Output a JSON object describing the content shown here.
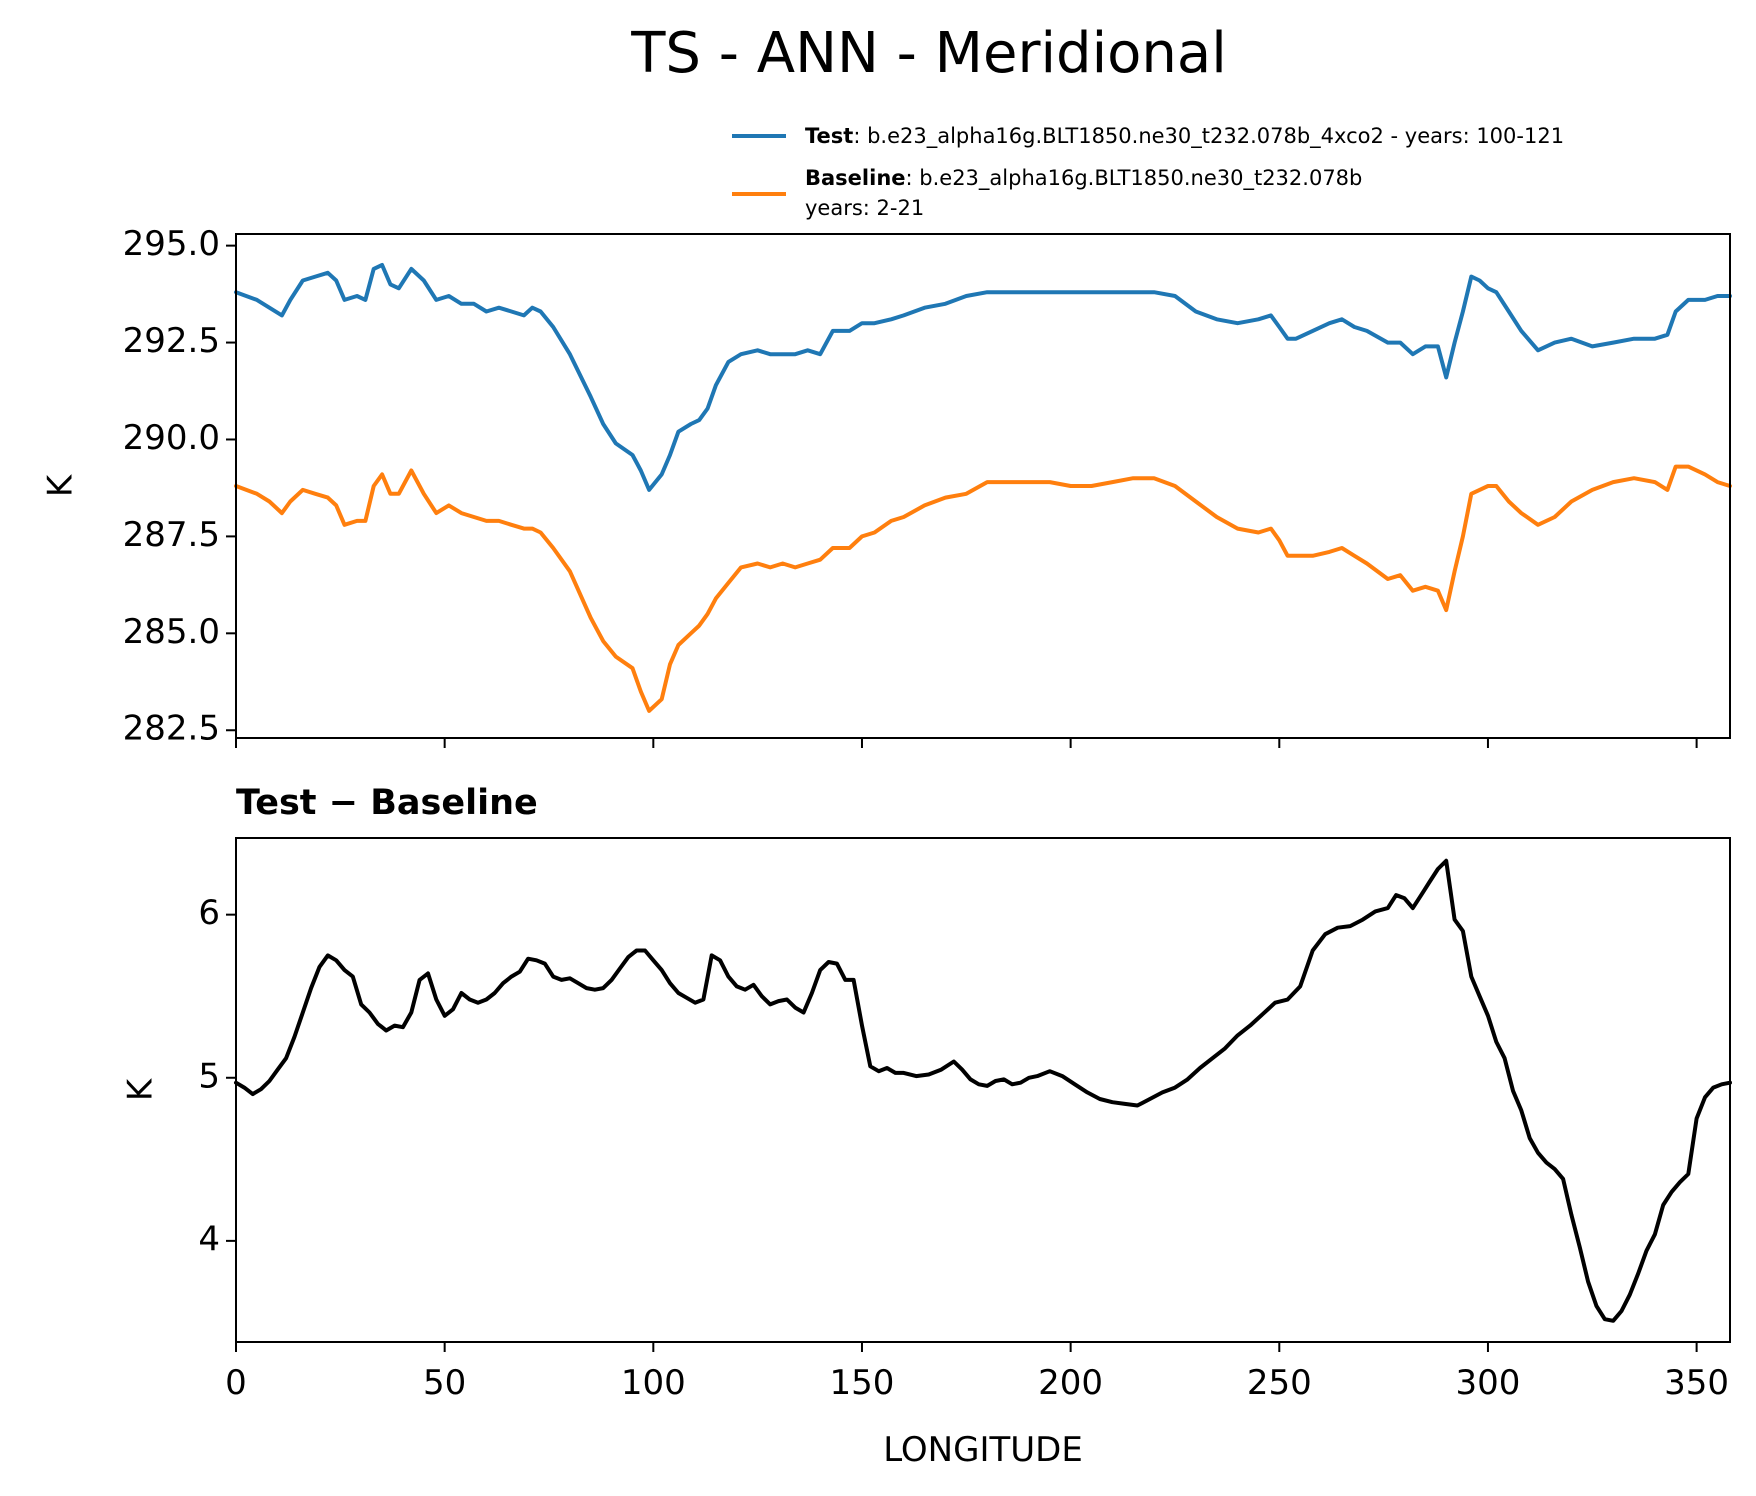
{
  "figure": {
    "title": "TS - ANN - Meridional"
  },
  "chart_data": [
    {
      "type": "line",
      "ylabel": "K",
      "xlim": [
        0,
        358
      ],
      "ylim": [
        282.3,
        295.3
      ],
      "xticks": [
        0,
        50,
        100,
        150,
        200,
        250,
        300,
        350
      ],
      "yticks": [
        282.5,
        285.0,
        287.5,
        290.0,
        292.5,
        295.0
      ],
      "ytick_labels": [
        "282.5",
        "285.0",
        "287.5",
        "290.0",
        "292.5",
        "295.0"
      ],
      "legend_position": "top-right",
      "legend": [
        {
          "name": "Test",
          "text": ": b.e23_alpha16g.BLT1850.ne30_t232.078b_4xco2 - years: 100-121",
          "text2": ""
        },
        {
          "name": "Baseline",
          "text": ": b.e23_alpha16g.BLT1850.ne30_t232.078b",
          "text2": "years: 2-21"
        }
      ],
      "series": [
        {
          "name": "Test",
          "color": "#1f77b4",
          "x": [
            0,
            5,
            8,
            11,
            13,
            16,
            19,
            22,
            24,
            26,
            29,
            31,
            33,
            35,
            37,
            39,
            42,
            45,
            48,
            51,
            54,
            57,
            60,
            63,
            66,
            69,
            71,
            73,
            76,
            80,
            85,
            88,
            91,
            95,
            97,
            99,
            102,
            104,
            106,
            109,
            111,
            113,
            115,
            118,
            121,
            125,
            128,
            131,
            134,
            137,
            140,
            143,
            147,
            150,
            153,
            157,
            160,
            165,
            170,
            175,
            180,
            185,
            190,
            195,
            200,
            205,
            210,
            215,
            220,
            225,
            230,
            235,
            240,
            245,
            248,
            250,
            252,
            254,
            258,
            262,
            265,
            268,
            271,
            276,
            279,
            282,
            285,
            288,
            290,
            292,
            294,
            296,
            298,
            300,
            302,
            305,
            308,
            312,
            316,
            320,
            325,
            330,
            335,
            340,
            343,
            345,
            348,
            352,
            355,
            358
          ],
          "y": [
            293.8,
            293.6,
            293.4,
            293.2,
            293.6,
            294.1,
            294.2,
            294.3,
            294.1,
            293.6,
            293.7,
            293.6,
            294.4,
            294.5,
            294.0,
            293.9,
            294.4,
            294.1,
            293.6,
            293.7,
            293.5,
            293.5,
            293.3,
            293.4,
            293.3,
            293.2,
            293.4,
            293.3,
            292.9,
            292.2,
            291.1,
            290.4,
            289.9,
            289.6,
            289.2,
            288.7,
            289.1,
            289.6,
            290.2,
            290.4,
            290.5,
            290.8,
            291.4,
            292.0,
            292.2,
            292.3,
            292.2,
            292.2,
            292.2,
            292.3,
            292.2,
            292.8,
            292.8,
            293.0,
            293.0,
            293.1,
            293.2,
            293.4,
            293.5,
            293.7,
            293.8,
            293.8,
            293.8,
            293.8,
            293.8,
            293.8,
            293.8,
            293.8,
            293.8,
            293.7,
            293.3,
            293.1,
            293.0,
            293.1,
            293.2,
            292.9,
            292.6,
            292.6,
            292.8,
            293.0,
            293.1,
            292.9,
            292.8,
            292.5,
            292.5,
            292.2,
            292.4,
            292.4,
            291.6,
            292.5,
            293.3,
            294.2,
            294.1,
            293.9,
            293.8,
            293.3,
            292.8,
            292.3,
            292.5,
            292.6,
            292.4,
            292.5,
            292.6,
            292.6,
            292.7,
            293.3,
            293.6,
            293.6,
            293.7,
            293.7
          ]
        },
        {
          "name": "Baseline",
          "color": "#ff7f0e",
          "x": [
            0,
            5,
            8,
            11,
            13,
            16,
            19,
            22,
            24,
            26,
            29,
            31,
            33,
            35,
            37,
            39,
            42,
            45,
            48,
            51,
            54,
            57,
            60,
            63,
            66,
            69,
            71,
            73,
            76,
            80,
            85,
            88,
            91,
            95,
            97,
            99,
            102,
            104,
            106,
            109,
            111,
            113,
            115,
            118,
            121,
            125,
            128,
            131,
            134,
            137,
            140,
            143,
            147,
            150,
            153,
            157,
            160,
            165,
            170,
            175,
            180,
            185,
            190,
            195,
            200,
            205,
            210,
            215,
            220,
            225,
            230,
            235,
            240,
            245,
            248,
            250,
            252,
            254,
            258,
            262,
            265,
            268,
            271,
            276,
            279,
            282,
            285,
            288,
            290,
            292,
            294,
            296,
            298,
            300,
            302,
            305,
            308,
            312,
            316,
            320,
            325,
            330,
            335,
            340,
            343,
            345,
            348,
            352,
            355,
            358
          ],
          "y": [
            288.8,
            288.6,
            288.4,
            288.1,
            288.4,
            288.7,
            288.6,
            288.5,
            288.3,
            287.8,
            287.9,
            287.9,
            288.8,
            289.1,
            288.6,
            288.6,
            289.2,
            288.6,
            288.1,
            288.3,
            288.1,
            288.0,
            287.9,
            287.9,
            287.8,
            287.7,
            287.7,
            287.6,
            287.2,
            286.6,
            285.4,
            284.8,
            284.4,
            284.1,
            283.5,
            283.0,
            283.3,
            284.2,
            284.7,
            285.0,
            285.2,
            285.5,
            285.9,
            286.3,
            286.7,
            286.8,
            286.7,
            286.8,
            286.7,
            286.8,
            286.9,
            287.2,
            287.2,
            287.5,
            287.6,
            287.9,
            288.0,
            288.3,
            288.5,
            288.6,
            288.9,
            288.9,
            288.9,
            288.9,
            288.8,
            288.8,
            288.9,
            289.0,
            289.0,
            288.8,
            288.4,
            288.0,
            287.7,
            287.6,
            287.7,
            287.4,
            287.0,
            287.0,
            287.0,
            287.1,
            287.2,
            287.0,
            286.8,
            286.4,
            286.5,
            286.1,
            286.2,
            286.1,
            285.6,
            286.6,
            287.5,
            288.6,
            288.7,
            288.8,
            288.8,
            288.4,
            288.1,
            287.8,
            288.0,
            288.4,
            288.7,
            288.9,
            289.0,
            288.9,
            288.7,
            289.3,
            289.3,
            289.1,
            288.9,
            288.8
          ]
        }
      ]
    },
    {
      "type": "line",
      "title": "Test − Baseline",
      "xlabel": "LONGITUDE",
      "ylabel": "K",
      "xlim": [
        0,
        358
      ],
      "ylim": [
        3.38,
        6.47
      ],
      "xticks": [
        0,
        50,
        100,
        150,
        200,
        250,
        300,
        350
      ],
      "xtick_labels": [
        "0",
        "50",
        "100",
        "150",
        "200",
        "250",
        "300",
        "350"
      ],
      "yticks": [
        4,
        5,
        6
      ],
      "ytick_labels": [
        "4",
        "5",
        "6"
      ],
      "series": [
        {
          "name": "",
          "color": "#000000",
          "x": [
            0,
            2,
            4,
            6,
            8,
            10,
            12,
            14,
            16,
            18,
            20,
            22,
            24,
            26,
            28,
            30,
            32,
            34,
            36,
            38,
            40,
            42,
            44,
            46,
            48,
            50,
            52,
            54,
            56,
            58,
            60,
            62,
            64,
            66,
            68,
            70,
            72,
            74,
            76,
            78,
            80,
            82,
            84,
            86,
            88,
            90,
            92,
            94,
            96,
            98,
            100,
            102,
            104,
            106,
            108,
            110,
            112,
            114,
            116,
            118,
            120,
            122,
            124,
            126,
            128,
            130,
            132,
            134,
            136,
            138,
            140,
            142,
            144,
            146,
            148,
            150,
            152,
            154,
            156,
            158,
            160,
            163,
            166,
            169,
            172,
            174,
            176,
            178,
            180,
            182,
            184,
            186,
            188,
            190,
            192,
            195,
            198,
            201,
            204,
            207,
            210,
            213,
            216,
            219,
            222,
            225,
            228,
            231,
            234,
            237,
            240,
            243,
            246,
            249,
            252,
            255,
            258,
            261,
            264,
            267,
            270,
            273,
            276,
            278,
            280,
            282,
            284,
            286,
            288,
            290,
            292,
            294,
            296,
            298,
            300,
            302,
            304,
            306,
            308,
            310,
            312,
            314,
            316,
            318,
            320,
            322,
            324,
            326,
            328,
            330,
            332,
            334,
            336,
            338,
            340,
            342,
            344,
            346,
            348,
            350,
            352,
            354,
            356,
            358
          ],
          "y": [
            4.97,
            4.94,
            4.9,
            4.93,
            4.98,
            5.05,
            5.12,
            5.25,
            5.4,
            5.55,
            5.68,
            5.75,
            5.72,
            5.66,
            5.62,
            5.45,
            5.4,
            5.33,
            5.29,
            5.32,
            5.31,
            5.4,
            5.6,
            5.64,
            5.48,
            5.38,
            5.42,
            5.52,
            5.48,
            5.46,
            5.48,
            5.52,
            5.58,
            5.62,
            5.65,
            5.73,
            5.72,
            5.7,
            5.62,
            5.6,
            5.61,
            5.58,
            5.55,
            5.54,
            5.55,
            5.6,
            5.67,
            5.74,
            5.78,
            5.78,
            5.72,
            5.66,
            5.58,
            5.52,
            5.49,
            5.46,
            5.48,
            5.75,
            5.72,
            5.62,
            5.56,
            5.54,
            5.57,
            5.5,
            5.45,
            5.47,
            5.48,
            5.43,
            5.4,
            5.52,
            5.66,
            5.71,
            5.7,
            5.6,
            5.6,
            5.32,
            5.07,
            5.04,
            5.06,
            5.03,
            5.03,
            5.01,
            5.02,
            5.05,
            5.1,
            5.05,
            4.99,
            4.96,
            4.95,
            4.98,
            4.99,
            4.96,
            4.97,
            5.0,
            5.01,
            5.04,
            5.01,
            4.96,
            4.91,
            4.87,
            4.85,
            4.84,
            4.83,
            4.87,
            4.91,
            4.94,
            4.99,
            5.06,
            5.12,
            5.18,
            5.26,
            5.32,
            5.39,
            5.46,
            5.48,
            5.56,
            5.78,
            5.88,
            5.92,
            5.93,
            5.97,
            6.02,
            6.04,
            6.12,
            6.1,
            6.04,
            6.12,
            6.2,
            6.28,
            6.33,
            5.97,
            5.9,
            5.62,
            5.5,
            5.38,
            5.22,
            5.12,
            4.92,
            4.8,
            4.63,
            4.54,
            4.48,
            4.44,
            4.38,
            4.16,
            3.96,
            3.75,
            3.6,
            3.52,
            3.51,
            3.57,
            3.67,
            3.8,
            3.94,
            4.04,
            4.22,
            4.3,
            4.36,
            4.41,
            4.75,
            4.88,
            4.94,
            4.96,
            4.97
          ]
        }
      ]
    }
  ]
}
